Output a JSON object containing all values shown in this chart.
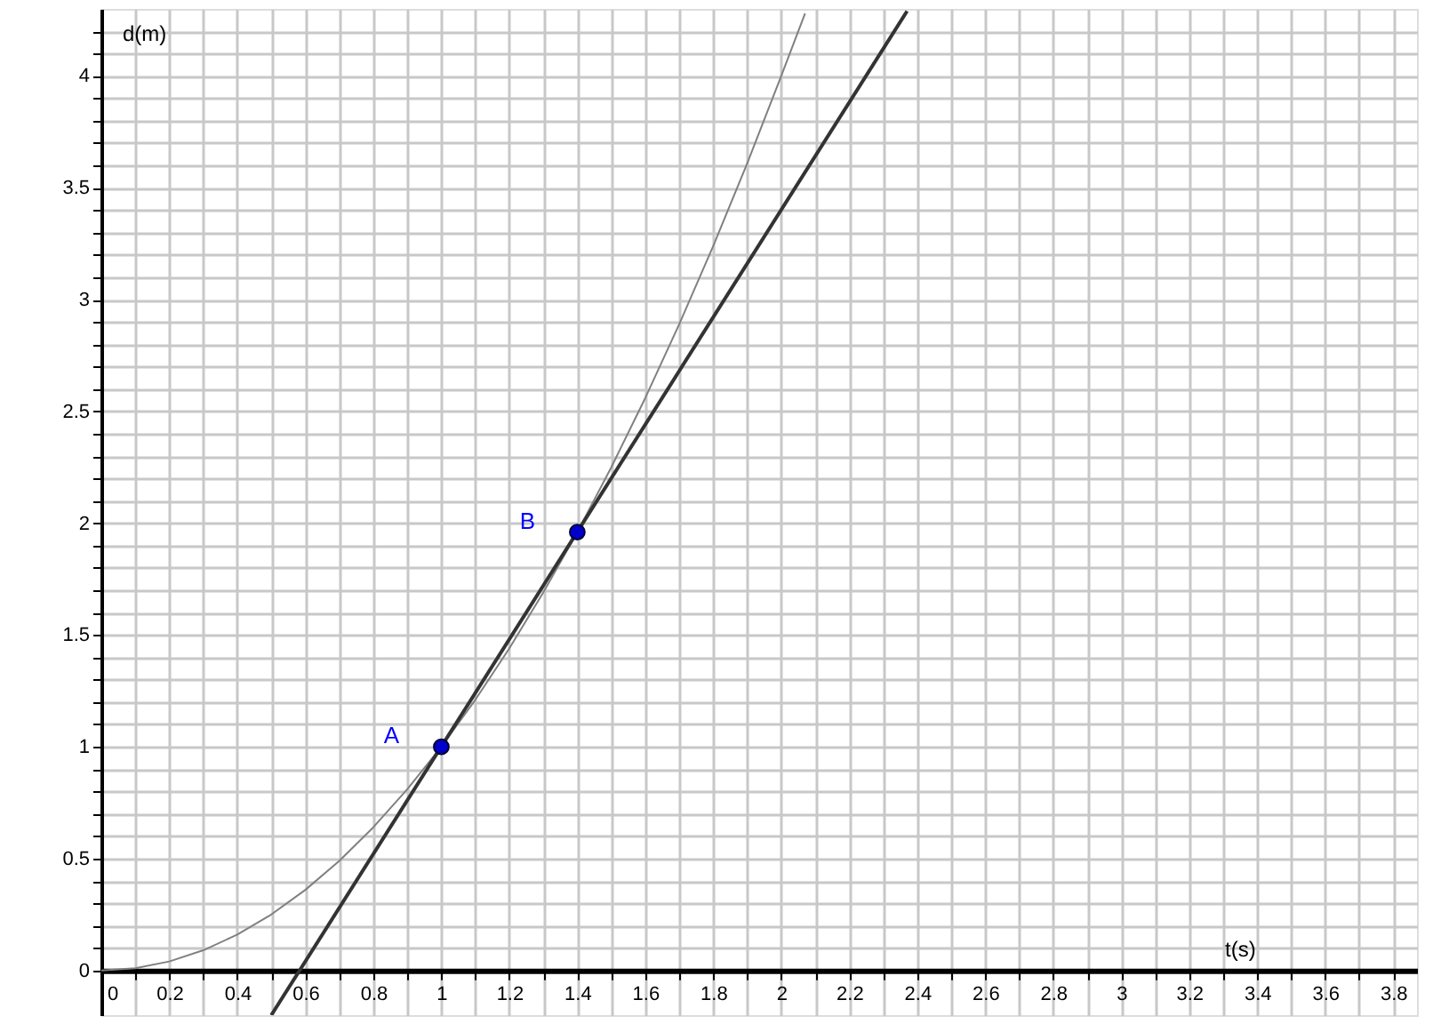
{
  "chart_data": {
    "type": "line",
    "xlabel": "t(s)",
    "ylabel": "d(m)",
    "xlim": [
      0,
      3.87
    ],
    "ylim": [
      -0.2,
      4.3
    ],
    "xticks": [
      0,
      {
        "value": 0.1,
        "label": null
      },
      0.2,
      {
        "value": 0.3,
        "label": null
      },
      0.4,
      {
        "value": 0.5,
        "label": null
      },
      0.6,
      {
        "value": 0.7,
        "label": null
      },
      0.8,
      {
        "value": 0.9,
        "label": null
      },
      1,
      {
        "value": 1.1,
        "label": null
      },
      1.2,
      {
        "value": 1.3,
        "label": null
      },
      1.4,
      {
        "value": 1.5,
        "label": null
      },
      1.6,
      {
        "value": 1.7,
        "label": null
      },
      1.8,
      {
        "value": 1.9,
        "label": null
      },
      2,
      {
        "value": 2.1,
        "label": null
      },
      2.2,
      {
        "value": 2.3,
        "label": null
      },
      2.4,
      {
        "value": 2.5,
        "label": null
      },
      2.6,
      {
        "value": 2.7,
        "label": null
      },
      2.8,
      {
        "value": 2.9,
        "label": null
      },
      3,
      {
        "value": 3.1,
        "label": null
      },
      3.2,
      {
        "value": 3.3,
        "label": null
      },
      3.4,
      {
        "value": 3.5,
        "label": null
      },
      3.6,
      {
        "value": 3.7,
        "label": null
      },
      3.8
    ],
    "yticks": [
      0,
      {
        "value": 0.1,
        "label": null
      },
      {
        "value": 0.2,
        "label": null
      },
      {
        "value": 0.3,
        "label": null
      },
      {
        "value": 0.4,
        "label": null
      },
      0.5,
      {
        "value": 0.6,
        "label": null
      },
      {
        "value": 0.7,
        "label": null
      },
      {
        "value": 0.8,
        "label": null
      },
      {
        "value": 0.9,
        "label": null
      },
      1,
      {
        "value": 1.1,
        "label": null
      },
      {
        "value": 1.2,
        "label": null
      },
      {
        "value": 1.3,
        "label": null
      },
      {
        "value": 1.4,
        "label": null
      },
      1.5,
      {
        "value": 1.6,
        "label": null
      },
      {
        "value": 1.7,
        "label": null
      },
      {
        "value": 1.8,
        "label": null
      },
      {
        "value": 1.9,
        "label": null
      },
      2,
      {
        "value": 2.1,
        "label": null
      },
      {
        "value": 2.2,
        "label": null
      },
      {
        "value": 2.3,
        "label": null
      },
      {
        "value": 2.4,
        "label": null
      },
      2.5,
      {
        "value": 2.6,
        "label": null
      },
      {
        "value": 2.7,
        "label": null
      },
      {
        "value": 2.8,
        "label": null
      },
      {
        "value": 2.9,
        "label": null
      },
      3,
      {
        "value": 3.1,
        "label": null
      },
      {
        "value": 3.2,
        "label": null
      },
      {
        "value": 3.3,
        "label": null
      },
      {
        "value": 3.4,
        "label": null
      },
      3.5,
      {
        "value": 3.6,
        "label": null
      },
      {
        "value": 3.7,
        "label": null
      },
      {
        "value": 3.8,
        "label": null
      },
      {
        "value": 3.9,
        "label": null
      },
      4,
      {
        "value": 4.1,
        "label": null
      },
      {
        "value": 4.2,
        "label": null
      }
    ],
    "grid": true,
    "series": [
      {
        "color": "#808080",
        "x": [
          0,
          0.1,
          0.2,
          0.3,
          0.4,
          0.5,
          0.6,
          0.7,
          0.8,
          0.9,
          1,
          1.1,
          1.2,
          1.3,
          1.4,
          1.5,
          1.6,
          1.7,
          1.8,
          1.9,
          2,
          2.07
        ],
        "values": [
          0,
          0.01,
          0.04,
          0.09,
          0.16,
          0.25,
          0.36,
          0.49,
          0.64,
          0.81,
          1,
          1.21,
          1.44,
          1.69,
          1.96,
          2.25,
          2.56,
          2.89,
          3.24,
          3.61,
          4,
          4.28
        ]
      },
      {
        "color": "#333333",
        "x": [
          0.5,
          2.37
        ],
        "values": [
          -0.2,
          4.29
        ]
      },
      {
        "type": "scatter",
        "color": "#0000cc",
        "x": [
          1,
          1.4
        ],
        "values": [
          1,
          1.96
        ]
      }
    ],
    "annotations": [
      {
        "text": "A",
        "x": 1,
        "y": 1
      },
      {
        "text": "B",
        "x": 1.4,
        "y": 1.96
      }
    ]
  }
}
